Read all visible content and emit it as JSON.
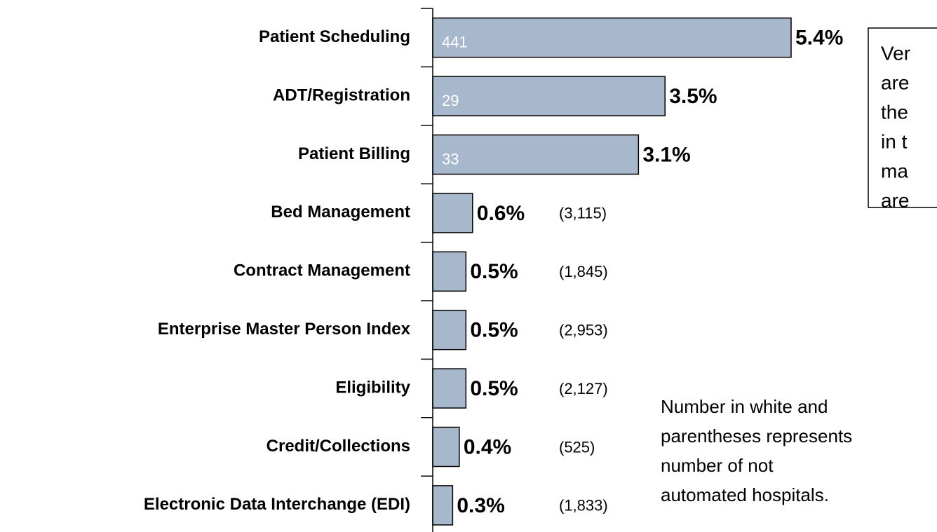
{
  "chart_data": {
    "type": "bar",
    "orientation": "horizontal",
    "color": "#a8b8cc",
    "categories": [
      "Patient Scheduling",
      "ADT/Registration",
      "Patient Billing",
      "Bed Management",
      "Contract Management",
      "Enterprise Master Person Index",
      "Eligibility",
      "Credit/Collections",
      "Electronic Data Interchange (EDI)"
    ],
    "values": [
      5.4,
      3.5,
      3.1,
      0.6,
      0.5,
      0.5,
      0.5,
      0.4,
      0.3
    ],
    "value_labels": [
      "5.4%",
      "3.5%",
      "3.1%",
      "0.6%",
      "0.5%",
      "0.5%",
      "0.5%",
      "0.4%",
      "0.3%"
    ],
    "counts": [
      441,
      29,
      33,
      {
        "value": 3115,
        "label": "(3,115)"
      },
      {
        "value": 1845,
        "label": "(1,845)"
      },
      {
        "value": 2953,
        "label": "(2,953)"
      },
      {
        "value": 2127,
        "label": "(2,127)"
      },
      {
        "value": 525,
        "label": "(525)"
      },
      {
        "value": 1833,
        "label": "(1,833)"
      }
    ],
    "box_text": [
      "Ver",
      "are",
      "the",
      "in t",
      "ma",
      "are"
    ],
    "note": [
      "Number in white and",
      "parentheses represents",
      "number of not",
      "automated hospitals."
    ]
  }
}
